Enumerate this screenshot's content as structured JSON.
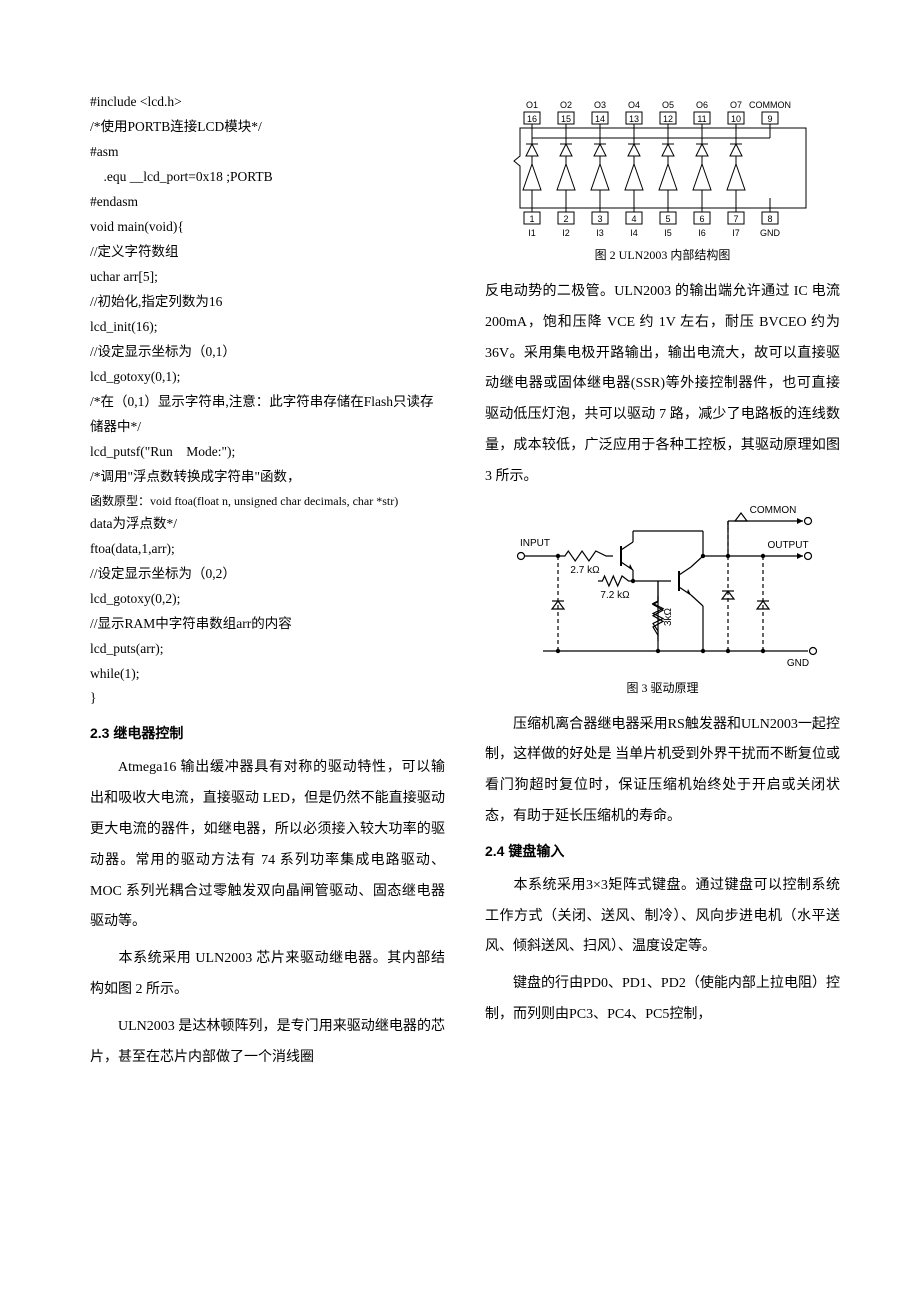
{
  "code": {
    "lines": [
      "#include <lcd.h>",
      "/*使用PORTB连接LCD模块*/",
      "#asm",
      "    .equ __lcd_port=0x18 ;PORTB",
      "#endasm",
      "void main(void){",
      "//定义字符数组",
      "uchar arr[5];",
      "//初始化,指定列数为16",
      "lcd_init(16);",
      "//设定显示坐标为（0,1）",
      "lcd_gotoxy(0,1);",
      "/*在（0,1）显示字符串,注意：此字符串存储在Flash只读存储器中*/",
      "lcd_putsf(\"Run    Mode:\");",
      "/*调用\"浮点数转换成字符串\"函数，",
      "函数原型：void ftoa(float n, unsigned char decimals, char *str)",
      "data为浮点数*/",
      "ftoa(data,1,arr);",
      "//设定显示坐标为（0,2）",
      "lcd_gotoxy(0,2);",
      "//显示RAM中字符串数组arr的内容",
      "lcd_puts(arr);",
      "while(1);",
      "}"
    ]
  },
  "sections": {
    "s23_title": "2.3  继电器控制",
    "s23_p1": "Atmega16 输出缓冲器具有对称的驱动特性，可以输出和吸收大电流，直接驱动 LED，但是仍然不能直接驱动更大电流的器件，如继电器，所以必须接入较大功率的驱动器。常用的驱动方法有 74 系列功率集成电路驱动、MOC 系列光耦合过零触发双向晶闸管驱动、固态继电器驱动等。",
    "s23_p2": "本系统采用 ULN2003 芯片来驱动继电器。其内部结构如图 2 所示。",
    "s23_p3": "ULN2003 是达林顿阵列，是专门用来驱动继电器的芯片，甚至在芯片内部做了一个消线圈",
    "s23_p4": "反电动势的二极管。ULN2003 的输出端允许通过 IC 电流 200mA，饱和压降 VCE 约 1V 左右，耐压 BVCEO 约为 36V。采用集电极开路输出，输出电流大，故可以直接驱动继电器或固体继电器(SSR)等外接控制器件，也可直接驱动低压灯泡，共可以驱动 7 路，减少了电路板的连线数量，成本较低，广泛应用于各种工控板，其驱动原理如图 3 所示。",
    "s23_p5": "压缩机离合器继电器采用RS触发器和ULN2003一起控制，这样做的好处是 当单片机受到外界干扰而不断复位或看门狗超时复位时，保证压缩机始终处于开启或关闭状态，有助于延长压缩机的寿命。",
    "s24_title": "2.4  键盘输入",
    "s24_p1": "本系统采用3×3矩阵式键盘。通过键盘可以控制系统工作方式（关闭、送风、制冷）、风向步进电机（水平送风、倾斜送风、扫风）、温度设定等。",
    "s24_p2": "键盘的行由PD0、PD1、PD2（使能内部上拉电阻）控制，而列则由PC3、PC4、PC5控制，"
  },
  "figures": {
    "fig2_caption": "图 2 ULN2003 内部结构图",
    "fig3_caption": "图 3    驱动原理",
    "fig2": {
      "top_labels": [
        "O1",
        "O2",
        "O3",
        "O4",
        "O5",
        "O6",
        "O7",
        "COMMON"
      ],
      "top_pins": [
        "16",
        "15",
        "14",
        "13",
        "12",
        "11",
        "10",
        "9"
      ],
      "bottom_pins": [
        "1",
        "2",
        "3",
        "4",
        "5",
        "6",
        "7",
        "8"
      ],
      "bottom_labels": [
        "I1",
        "I2",
        "I3",
        "I4",
        "I5",
        "I6",
        "I7",
        "GND"
      ],
      "line_color": "#000000",
      "font_size": 9
    },
    "fig3": {
      "labels": {
        "common": "COMMON",
        "input": "INPUT",
        "output": "OUTPUT",
        "gnd": "GND",
        "r1": "2.7 kΩ",
        "r2": "7.2 kΩ",
        "r3": "3kΩ"
      },
      "line_color": "#000000",
      "font_size": 10
    }
  },
  "style": {
    "background": "#ffffff",
    "text_color": "#000000",
    "code_font_size": 13.5,
    "body_font_size": 14,
    "heading_font_size": 14,
    "caption_font_size": 12,
    "line_height_body": 2.2,
    "line_height_code": 1.85
  }
}
